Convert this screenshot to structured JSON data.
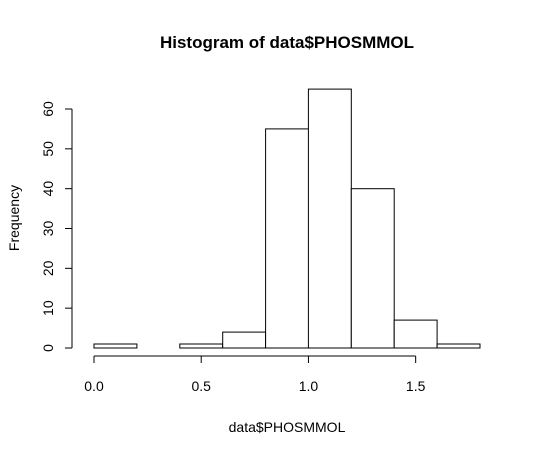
{
  "chart_data": {
    "type": "bar",
    "title": "Histogram of data$PHOSMMOL",
    "xlabel": "data$PHOSMMOL",
    "ylabel": "Frequency",
    "bins": [
      {
        "start": 0.0,
        "end": 0.2,
        "count": 1
      },
      {
        "start": 0.2,
        "end": 0.4,
        "count": 0
      },
      {
        "start": 0.4,
        "end": 0.6,
        "count": 1
      },
      {
        "start": 0.6,
        "end": 0.8,
        "count": 4
      },
      {
        "start": 0.8,
        "end": 1.0,
        "count": 55
      },
      {
        "start": 1.0,
        "end": 1.2,
        "count": 65
      },
      {
        "start": 1.2,
        "end": 1.4,
        "count": 40
      },
      {
        "start": 1.4,
        "end": 1.6,
        "count": 7
      },
      {
        "start": 1.6,
        "end": 1.8,
        "count": 1
      }
    ],
    "x_ticks": [
      0.0,
      0.5,
      1.0,
      1.5
    ],
    "x_tick_labels": [
      "0.0",
      "0.5",
      "1.0",
      "1.5"
    ],
    "y_ticks": [
      0,
      10,
      20,
      30,
      40,
      50,
      60
    ],
    "y_tick_labels": [
      "0",
      "10",
      "20",
      "30",
      "40",
      "50",
      "60"
    ],
    "xlim": [
      0.0,
      1.8
    ],
    "ylim": [
      0,
      65
    ],
    "grid": false,
    "colors": {
      "bar_fill": "#ffffff",
      "bar_stroke": "#000000"
    }
  }
}
